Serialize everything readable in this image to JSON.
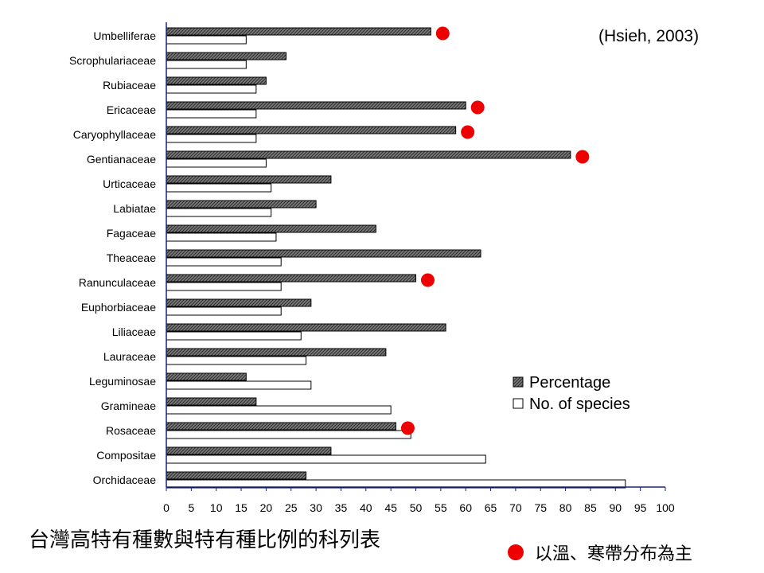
{
  "chart_data": {
    "type": "bar",
    "orientation": "horizontal",
    "categories": [
      "Umbelliferae",
      "Scrophulariaceae",
      "Rubiaceae",
      "Ericaceae",
      "Caryophyllaceae",
      "Gentianaceae",
      "Urticaceae",
      "Labiatae",
      "Fagaceae",
      "Theaceae",
      "Ranunculaceae",
      "Euphorbiaceae",
      "Liliaceae",
      "Lauraceae",
      "Leguminosae",
      "Gramineae",
      "Rosaceae",
      "Compositae",
      "Orchidaceae"
    ],
    "series": [
      {
        "name": "Percentage",
        "fill": "hatched-gray",
        "values": [
          53,
          24,
          20,
          60,
          58,
          81,
          33,
          30,
          42,
          63,
          50,
          29,
          56,
          44,
          16,
          18,
          46,
          33,
          28
        ]
      },
      {
        "name": "No. of species",
        "fill": "white",
        "values": [
          16,
          16,
          18,
          18,
          18,
          20,
          21,
          21,
          22,
          23,
          23,
          23,
          27,
          28,
          29,
          45,
          49,
          64,
          92
        ]
      }
    ],
    "markers": [
      "Umbelliferae",
      "Ericaceae",
      "Caryophyllaceae",
      "Gentianaceae",
      "Ranunculaceae",
      "Rosaceae"
    ],
    "xlim": [
      0,
      100
    ],
    "xticks": [
      0,
      5,
      10,
      15,
      20,
      25,
      30,
      35,
      40,
      45,
      50,
      55,
      60,
      65,
      70,
      75,
      80,
      85,
      90,
      95,
      100
    ],
    "legend_position": "lower-right",
    "marker_color": "#ee0000",
    "axis_color": "#1a237e"
  },
  "citation": "(Hsieh, 2003)",
  "caption": "台灣高特有種數與特有種比例的科列表",
  "marker_note": "以溫、寒帶分布為主"
}
